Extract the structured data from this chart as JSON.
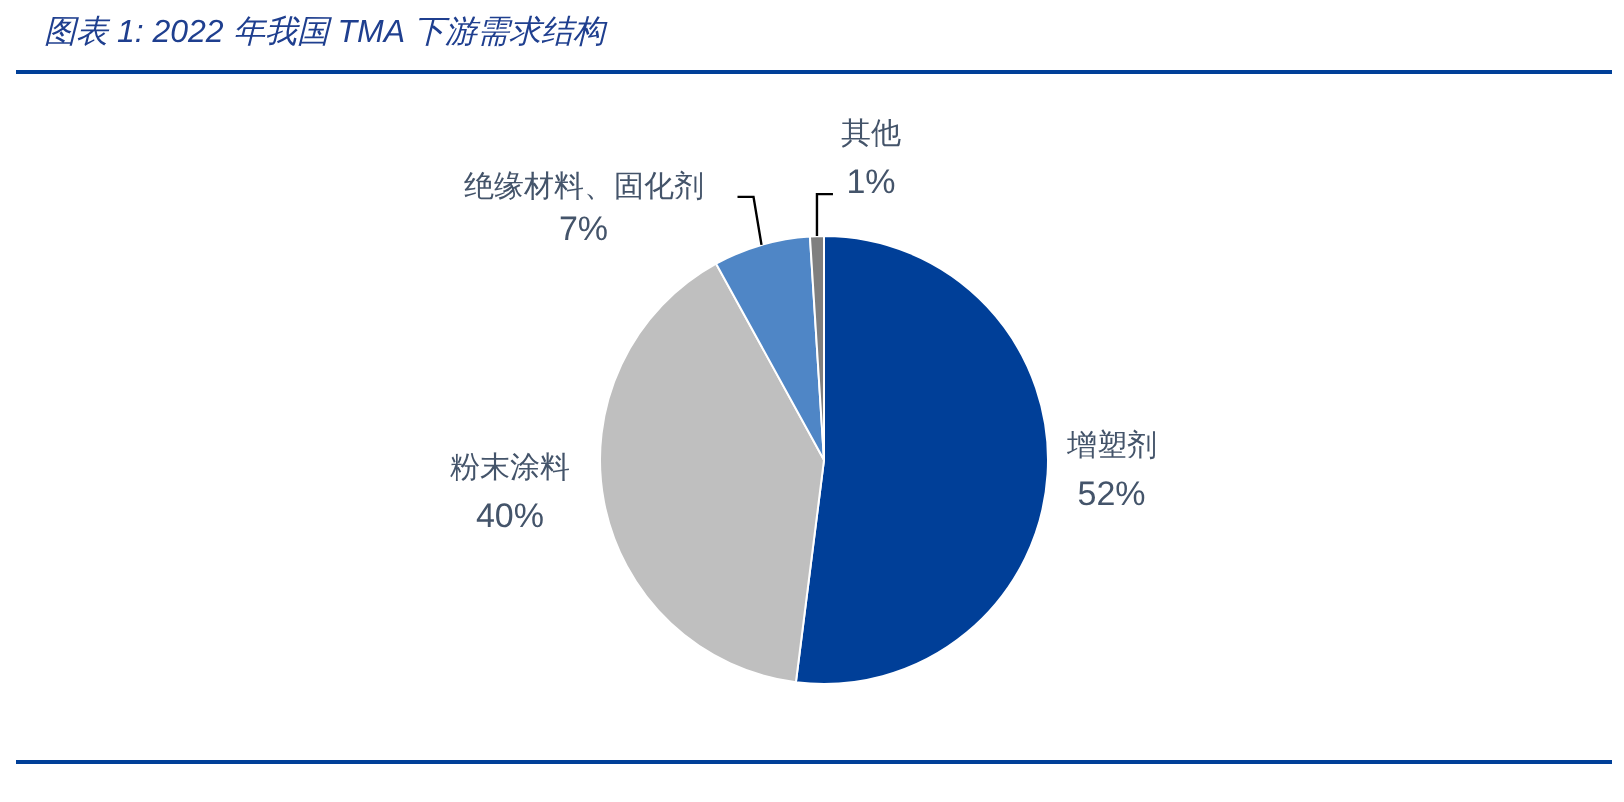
{
  "chart_data": {
    "type": "pie",
    "title": "图表 1: 2022 年我国 TMA 下游需求结构",
    "categories": [
      "增塑剂",
      "粉末涂料",
      "绝缘材料、固化剂",
      "其他"
    ],
    "values": [
      52,
      40,
      7,
      1
    ],
    "colors": [
      "#003f98",
      "#bfbfbf",
      "#4f86c6",
      "#7f7f7f"
    ],
    "value_labels": [
      "52%",
      "40%",
      "7%",
      "1%"
    ]
  }
}
